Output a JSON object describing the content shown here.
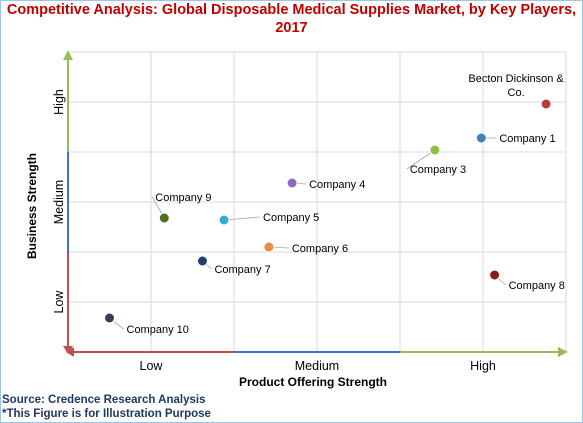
{
  "title_line1": "Competitive Analysis: Global Disposable Medical Supplies Market, by Key Players,",
  "title_line2": "2017",
  "source_line1": "Source: Credence Research Analysis",
  "source_line2": "*This Figure is for Illustration Purpose",
  "chart_data": {
    "type": "scatter",
    "xlabel": "Product Offering Strength",
    "ylabel": "Business Strength",
    "x_tick_labels": [
      "Low",
      "Medium",
      "High"
    ],
    "y_tick_labels": [
      "Low",
      "Medium",
      "High"
    ],
    "xlim": [
      0,
      3
    ],
    "ylim": [
      0,
      3
    ],
    "grid": true,
    "points": [
      {
        "label": "Becton Dickinson & Co.",
        "x": 2.88,
        "y": 2.48,
        "color": "#c0392b"
      },
      {
        "label": "Company 1",
        "x": 2.49,
        "y": 2.14,
        "color": "#3b82c4"
      },
      {
        "label": "Company 3",
        "x": 2.21,
        "y": 2.02,
        "color": "#8fbf3f"
      },
      {
        "label": "Company 4",
        "x": 1.35,
        "y": 1.69,
        "color": "#8e6bbf"
      },
      {
        "label": "Company 5",
        "x": 0.94,
        "y": 1.32,
        "color": "#2eaed1"
      },
      {
        "label": "Company 6",
        "x": 1.21,
        "y": 1.05,
        "color": "#f0883e"
      },
      {
        "label": "Company 7",
        "x": 0.81,
        "y": 0.91,
        "color": "#1f3f6f"
      },
      {
        "label": "Company 8",
        "x": 2.57,
        "y": 0.77,
        "color": "#8b1a1a"
      },
      {
        "label": "Company 9",
        "x": 0.58,
        "y": 1.34,
        "color": "#4f6e1f"
      },
      {
        "label": "Company 10",
        "x": 0.25,
        "y": 0.34,
        "color": "#3a3a5a"
      }
    ],
    "arrow_colors": {
      "low": "#c0504d",
      "medium": "#4472c4",
      "high": "#9bbb59"
    }
  }
}
